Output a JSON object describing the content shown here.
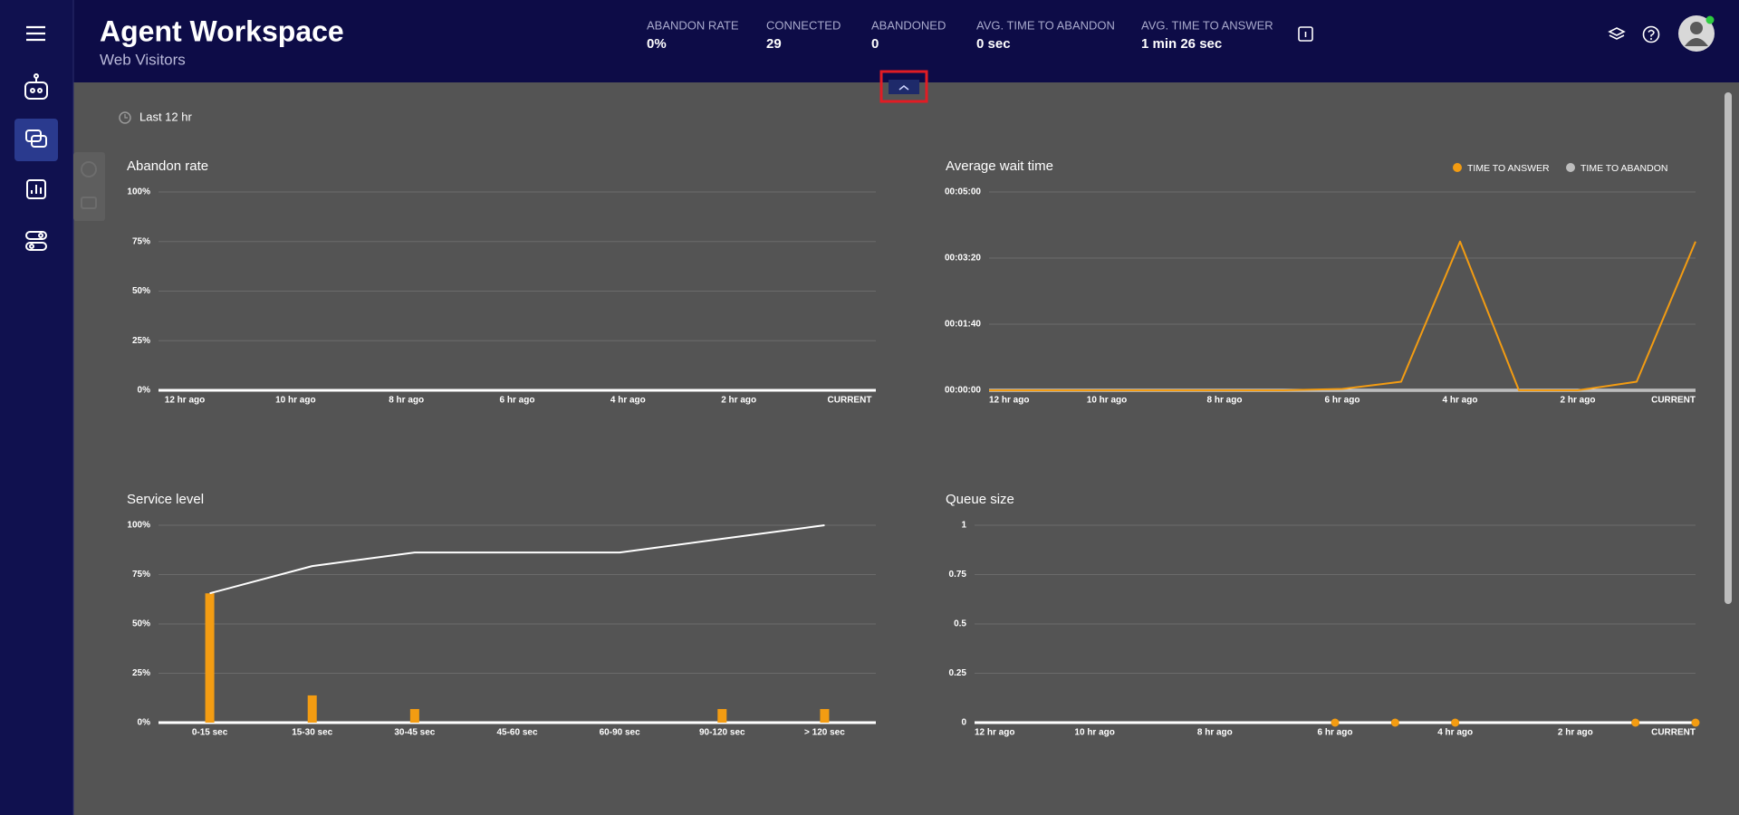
{
  "header": {
    "title": "Agent Workspace",
    "subtitle": "Web Visitors"
  },
  "stats": [
    {
      "label": "ABANDON RATE",
      "value": "0%"
    },
    {
      "label": "CONNECTED",
      "value": "29"
    },
    {
      "label": "ABANDONED",
      "value": "0"
    },
    {
      "label": "AVG. TIME TO ABANDON",
      "value": "0 sec"
    },
    {
      "label": "AVG. TIME TO ANSWER",
      "value": "1 min 26 sec"
    }
  ],
  "filter": {
    "label": "Last 12 hr"
  },
  "chart_data": [
    {
      "type": "line",
      "title": "Abandon rate",
      "categories": [
        "12 hr ago",
        null,
        "10 hr ago",
        null,
        "8 hr ago",
        null,
        "6 hr ago",
        null,
        "4 hr ago",
        null,
        "2 hr ago",
        null,
        "CURRENT"
      ],
      "series": [
        {
          "color": "#ffffff",
          "values": [
            0,
            0,
            0,
            0,
            0,
            0,
            0,
            0,
            0,
            0,
            0,
            0,
            0
          ]
        }
      ],
      "ylim": [
        0,
        100
      ],
      "yticks": [
        {
          "value": 0,
          "label": "0%"
        },
        {
          "value": 25,
          "label": "25%"
        },
        {
          "value": 50,
          "label": "50%"
        },
        {
          "value": 75,
          "label": "75%"
        },
        {
          "value": 100,
          "label": "100%"
        }
      ],
      "grid": true
    },
    {
      "type": "line",
      "title": "Average wait time",
      "categories": [
        "12 hr ago",
        null,
        "10 hr ago",
        null,
        "8 hr ago",
        null,
        "6 hr ago",
        null,
        "4 hr ago",
        null,
        "2 hr ago",
        null,
        "CURRENT"
      ],
      "series": [
        {
          "name": "TIME TO ANSWER",
          "color": "#f39c12",
          "values": [
            0,
            0,
            0,
            0,
            0,
            0,
            2,
            13,
            225,
            0,
            0,
            13,
            225
          ]
        },
        {
          "name": "TIME TO ABANDON",
          "color": "#bdbdbd",
          "values": [
            0,
            0,
            0,
            0,
            0,
            0,
            0,
            0,
            0,
            0,
            0,
            0,
            0
          ]
        }
      ],
      "ylim": [
        0,
        300
      ],
      "yticks": [
        {
          "value": 0,
          "label": "00:00:00"
        },
        {
          "value": 100,
          "label": "00:01:40"
        },
        {
          "value": 200,
          "label": "00:03:20"
        },
        {
          "value": 300,
          "label": "00:05:00"
        }
      ],
      "grid": true,
      "legend": "top-right"
    },
    {
      "type": "bar-line",
      "title": "Service level",
      "categories": [
        "0-15 sec",
        "15-30 sec",
        "30-45 sec",
        "45-60 sec",
        "60-90 sec",
        "90-120 sec",
        "> 120 sec"
      ],
      "series": [
        {
          "type": "bar",
          "color": "#f39c12",
          "values": [
            65.5,
            13.8,
            6.9,
            0,
            0,
            6.9,
            6.9
          ]
        },
        {
          "type": "line",
          "color": "#ffffff",
          "values": [
            65.5,
            79.3,
            86.2,
            86.2,
            86.2,
            93.1,
            100
          ]
        }
      ],
      "ylim": [
        0,
        100
      ],
      "yticks": [
        {
          "value": 0,
          "label": "0%"
        },
        {
          "value": 25,
          "label": "25%"
        },
        {
          "value": 50,
          "label": "50%"
        },
        {
          "value": 75,
          "label": "75%"
        },
        {
          "value": 100,
          "label": "100%"
        }
      ],
      "grid": true
    },
    {
      "type": "scatter",
      "title": "Queue size",
      "categories": [
        "12 hr ago",
        null,
        "10 hr ago",
        null,
        "8 hr ago",
        null,
        "6 hr ago",
        null,
        "4 hr ago",
        null,
        "2 hr ago",
        null,
        "CURRENT"
      ],
      "series": [
        {
          "color": "#f39c12",
          "values": [
            null,
            null,
            null,
            null,
            null,
            null,
            0,
            0,
            0,
            null,
            null,
            0,
            0
          ]
        }
      ],
      "ylim": [
        0,
        1
      ],
      "yticks": [
        0,
        0.25,
        0.5,
        0.75,
        1
      ],
      "grid": true
    }
  ]
}
